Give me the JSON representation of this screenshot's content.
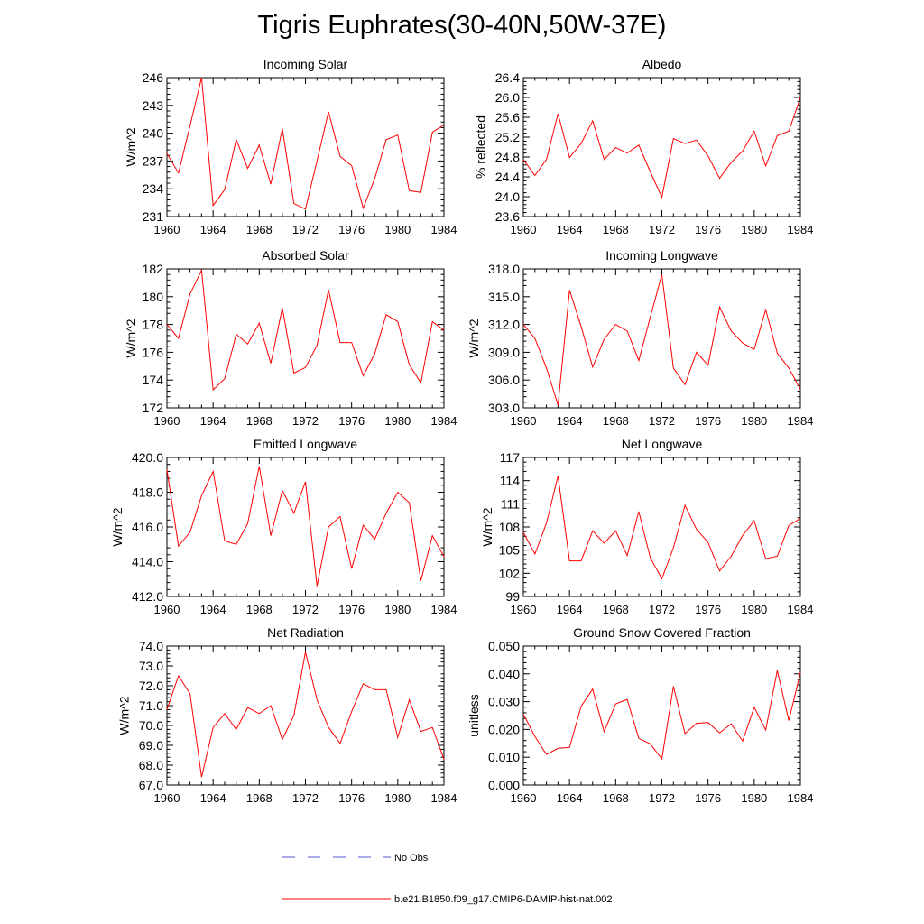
{
  "title": "Tigris Euphrates(30-40N,50W-37E)",
  "colors": {
    "model": "#ff0000",
    "obs": "#5555cc"
  },
  "legend": {
    "obs_label": "No Obs",
    "model_label": "b.e21.B1850.f09_g17.CMIP6-DAMIP-hist-nat.002"
  },
  "chart_data": [
    {
      "type": "line",
      "title": "Incoming Solar",
      "ylabel": "W/m^2",
      "xlabel": "",
      "xlim": [
        1960,
        1984
      ],
      "ylim": [
        231,
        246
      ],
      "x_ticks": [
        "1960",
        "1964",
        "1968",
        "1972",
        "1976",
        "1980",
        "1984"
      ],
      "y_ticks": [
        "231",
        "234",
        "237",
        "240",
        "243",
        "246"
      ],
      "x": [
        1960,
        1961,
        1962,
        1963,
        1964,
        1965,
        1966,
        1967,
        1968,
        1969,
        1970,
        1971,
        1972,
        1973,
        1974,
        1975,
        1976,
        1977,
        1978,
        1979,
        1980,
        1981,
        1982,
        1983,
        1984
      ],
      "series": [
        {
          "name": "b.e21.B1850.f09_g17.CMIP6-DAMIP-hist-nat.002",
          "values": [
            237.8,
            235.7,
            240.8,
            246.0,
            232.2,
            233.9,
            239.3,
            236.2,
            238.7,
            234.5,
            240.5,
            232.4,
            231.8,
            237.0,
            242.3,
            237.5,
            236.5,
            231.9,
            235.1,
            239.3,
            239.8,
            233.8,
            233.6,
            240.1,
            240.9
          ]
        }
      ]
    },
    {
      "type": "line",
      "title": "Albedo",
      "ylabel": "% reflected",
      "xlabel": "",
      "xlim": [
        1960,
        1984
      ],
      "ylim": [
        23.6,
        26.4
      ],
      "x_ticks": [
        "1960",
        "1964",
        "1968",
        "1972",
        "1976",
        "1980",
        "1984"
      ],
      "y_ticks": [
        "23.6",
        "24.0",
        "24.4",
        "24.8",
        "25.2",
        "25.6",
        "26.0",
        "26.4"
      ],
      "x": [
        1960,
        1961,
        1962,
        1963,
        1964,
        1965,
        1966,
        1967,
        1968,
        1969,
        1970,
        1971,
        1972,
        1973,
        1974,
        1975,
        1976,
        1977,
        1978,
        1979,
        1980,
        1981,
        1982,
        1983,
        1984
      ],
      "series": [
        {
          "name": "b.e21.B1850.f09_g17.CMIP6-DAMIP-hist-nat.002",
          "values": [
            24.75,
            24.43,
            24.75,
            25.67,
            24.79,
            25.07,
            25.53,
            24.75,
            24.99,
            24.88,
            25.04,
            24.5,
            23.99,
            25.17,
            25.07,
            25.14,
            24.82,
            24.37,
            24.69,
            24.92,
            25.32,
            24.62,
            25.23,
            25.32,
            26.0
          ]
        }
      ]
    },
    {
      "type": "line",
      "title": "Absorbed Solar",
      "ylabel": "W/m^2",
      "xlabel": "",
      "xlim": [
        1960,
        1984
      ],
      "ylim": [
        172,
        182
      ],
      "x_ticks": [
        "1960",
        "1964",
        "1968",
        "1972",
        "1976",
        "1980",
        "1984"
      ],
      "y_ticks": [
        "172",
        "174",
        "176",
        "178",
        "180",
        "182"
      ],
      "x": [
        1960,
        1961,
        1962,
        1963,
        1964,
        1965,
        1966,
        1967,
        1968,
        1969,
        1970,
        1971,
        1972,
        1973,
        1974,
        1975,
        1976,
        1977,
        1978,
        1979,
        1980,
        1981,
        1982,
        1983,
        1984
      ],
      "series": [
        {
          "name": "b.e21.B1850.f09_g17.CMIP6-DAMIP-hist-nat.002",
          "values": [
            178.0,
            177.0,
            180.2,
            181.9,
            173.3,
            174.1,
            177.3,
            176.6,
            178.1,
            175.2,
            179.2,
            174.5,
            174.9,
            176.5,
            180.5,
            176.7,
            176.7,
            174.3,
            175.9,
            178.7,
            178.2,
            175.1,
            173.8,
            178.2,
            177.6
          ]
        }
      ]
    },
    {
      "type": "line",
      "title": "Incoming Longwave",
      "ylabel": "W/m^2",
      "xlabel": "",
      "xlim": [
        1960,
        1984
      ],
      "ylim": [
        303.0,
        318.0
      ],
      "x_ticks": [
        "1960",
        "1964",
        "1968",
        "1972",
        "1976",
        "1980",
        "1984"
      ],
      "y_ticks": [
        "303.0",
        "306.0",
        "309.0",
        "312.0",
        "315.0",
        "318.0"
      ],
      "x": [
        1960,
        1961,
        1962,
        1963,
        1964,
        1965,
        1966,
        1967,
        1968,
        1969,
        1970,
        1971,
        1972,
        1973,
        1974,
        1975,
        1976,
        1977,
        1978,
        1979,
        1980,
        1981,
        1982,
        1983,
        1984
      ],
      "series": [
        {
          "name": "b.e21.B1850.f09_g17.CMIP6-DAMIP-hist-nat.002",
          "values": [
            312.0,
            310.5,
            307.3,
            303.3,
            315.7,
            311.8,
            307.4,
            310.4,
            312.0,
            311.3,
            308.1,
            312.8,
            317.4,
            307.3,
            305.5,
            309.0,
            307.6,
            313.9,
            311.3,
            310.0,
            309.3,
            313.6,
            308.9,
            307.3,
            305.0
          ]
        }
      ]
    },
    {
      "type": "line",
      "title": "Emitted Longwave",
      "ylabel": "W/m^2",
      "xlabel": "",
      "xlim": [
        1960,
        1984
      ],
      "ylim": [
        412.0,
        420.0
      ],
      "x_ticks": [
        "1960",
        "1964",
        "1968",
        "1972",
        "1976",
        "1980",
        "1984"
      ],
      "y_ticks": [
        "412.0",
        "414.0",
        "416.0",
        "418.0",
        "420.0"
      ],
      "x": [
        1960,
        1961,
        1962,
        1963,
        1964,
        1965,
        1966,
        1967,
        1968,
        1969,
        1970,
        1971,
        1972,
        1973,
        1974,
        1975,
        1976,
        1977,
        1978,
        1979,
        1980,
        1981,
        1982,
        1983,
        1984
      ],
      "series": [
        {
          "name": "b.e21.B1850.f09_g17.CMIP6-DAMIP-hist-nat.002",
          "values": [
            419.3,
            414.9,
            415.7,
            417.8,
            419.2,
            415.2,
            415.0,
            416.2,
            419.5,
            415.5,
            418.1,
            416.8,
            418.6,
            412.6,
            416.0,
            416.6,
            413.6,
            416.1,
            415.3,
            416.8,
            418.0,
            417.4,
            412.9,
            415.5,
            414.3
          ]
        }
      ]
    },
    {
      "type": "line",
      "title": "Net Longwave",
      "ylabel": "W/m^2",
      "xlabel": "",
      "xlim": [
        1960,
        1984
      ],
      "ylim": [
        99,
        117
      ],
      "x_ticks": [
        "1960",
        "1964",
        "1968",
        "1972",
        "1976",
        "1980",
        "1984"
      ],
      "y_ticks": [
        "99",
        "102",
        "105",
        "108",
        "111",
        "114",
        "117"
      ],
      "x": [
        1960,
        1961,
        1962,
        1963,
        1964,
        1965,
        1966,
        1967,
        1968,
        1969,
        1970,
        1971,
        1972,
        1973,
        1974,
        1975,
        1976,
        1977,
        1978,
        1979,
        1980,
        1981,
        1982,
        1983,
        1984
      ],
      "series": [
        {
          "name": "b.e21.B1850.f09_g17.CMIP6-DAMIP-hist-nat.002",
          "values": [
            107.3,
            104.5,
            108.5,
            114.6,
            103.6,
            103.6,
            107.5,
            105.9,
            107.5,
            104.3,
            110.0,
            104.0,
            101.3,
            105.3,
            110.8,
            107.7,
            106.0,
            102.3,
            104.2,
            106.9,
            108.8,
            103.9,
            104.2,
            108.2,
            109.1
          ]
        }
      ]
    },
    {
      "type": "line",
      "title": "Net Radiation",
      "ylabel": "W/m^2",
      "xlabel": "",
      "xlim": [
        1960,
        1984
      ],
      "ylim": [
        67.0,
        74.0
      ],
      "x_ticks": [
        "1960",
        "1964",
        "1968",
        "1972",
        "1976",
        "1980",
        "1984"
      ],
      "y_ticks": [
        "67.0",
        "68.0",
        "69.0",
        "70.0",
        "71.0",
        "72.0",
        "73.0",
        "74.0"
      ],
      "x": [
        1960,
        1961,
        1962,
        1963,
        1964,
        1965,
        1966,
        1967,
        1968,
        1969,
        1970,
        1971,
        1972,
        1973,
        1974,
        1975,
        1976,
        1977,
        1978,
        1979,
        1980,
        1981,
        1982,
        1983,
        1984
      ],
      "series": [
        {
          "name": "b.e21.B1850.f09_g17.CMIP6-DAMIP-hist-nat.002",
          "values": [
            70.8,
            72.5,
            71.6,
            67.4,
            69.9,
            70.6,
            69.8,
            70.9,
            70.6,
            71.0,
            69.3,
            70.5,
            73.7,
            71.3,
            69.9,
            69.1,
            70.7,
            72.1,
            71.8,
            71.8,
            69.4,
            71.3,
            69.7,
            69.9,
            68.3
          ]
        }
      ]
    },
    {
      "type": "line",
      "title": "Ground Snow Covered Fraction",
      "ylabel": "unitless",
      "xlabel": "",
      "xlim": [
        1960,
        1984
      ],
      "ylim": [
        0.0,
        0.05
      ],
      "x_ticks": [
        "1960",
        "1964",
        "1968",
        "1972",
        "1976",
        "1980",
        "1984"
      ],
      "y_ticks": [
        "0.000",
        "0.010",
        "0.020",
        "0.030",
        "0.040",
        "0.050"
      ],
      "x": [
        1960,
        1961,
        1962,
        1963,
        1964,
        1965,
        1966,
        1967,
        1968,
        1969,
        1970,
        1971,
        1972,
        1973,
        1974,
        1975,
        1976,
        1977,
        1978,
        1979,
        1980,
        1981,
        1982,
        1983,
        1984
      ],
      "series": [
        {
          "name": "b.e21.B1850.f09_g17.CMIP6-DAMIP-hist-nat.002",
          "values": [
            0.0255,
            0.0175,
            0.011,
            0.0132,
            0.0135,
            0.0283,
            0.0345,
            0.0192,
            0.0292,
            0.0308,
            0.0168,
            0.0148,
            0.0094,
            0.0355,
            0.0185,
            0.0222,
            0.0225,
            0.0188,
            0.022,
            0.0158,
            0.028,
            0.0198,
            0.0412,
            0.0232,
            0.0405
          ]
        }
      ]
    }
  ]
}
